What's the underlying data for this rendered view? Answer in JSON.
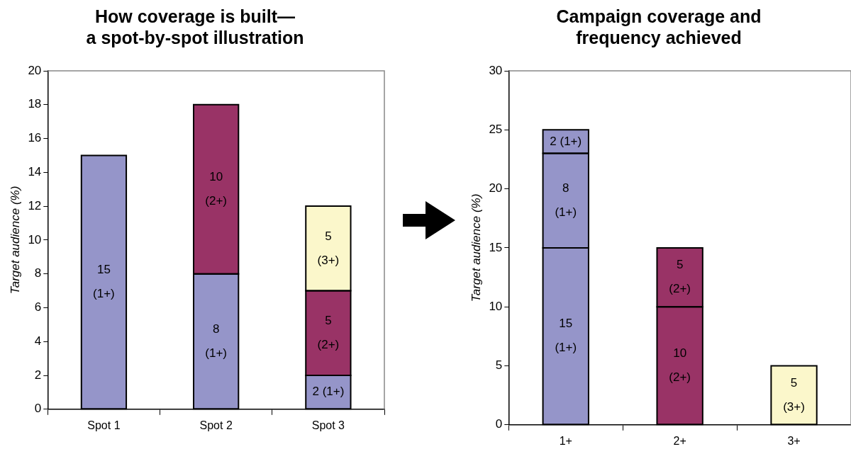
{
  "chart_data": [
    {
      "type": "bar",
      "title": "How coverage is built—\na spot-by-spot illustration",
      "ylabel": "Target audience (%)",
      "categories": [
        "Spot 1",
        "Spot 2",
        "Spot 3"
      ],
      "stacked": true,
      "ylim": [
        0,
        20
      ],
      "yticks": [
        0,
        2,
        4,
        6,
        8,
        10,
        12,
        14,
        16,
        18,
        20
      ],
      "series": [
        {
          "values": [
            15,
            8,
            2
          ],
          "colors": [
            "#9595c9",
            "#9595c9",
            "#9595c9"
          ],
          "value_labels": [
            "15\n(1+)",
            "8\n(1+)",
            "2 (1+)"
          ]
        },
        {
          "values": [
            null,
            10,
            5
          ],
          "colors": [
            "#993366",
            "#993366",
            "#993366"
          ],
          "value_labels": [
            null,
            "10\n(2+)",
            "5\n(2+)"
          ]
        },
        {
          "values": [
            null,
            null,
            5
          ],
          "colors": [
            "#fbf7cb",
            "#fbf7cb",
            "#fbf7cb"
          ],
          "value_labels": [
            null,
            null,
            "5\n(3+)"
          ]
        }
      ]
    },
    {
      "type": "bar",
      "title": "Campaign coverage and\nfrequency achieved",
      "ylabel": "Target audience (%)",
      "categories": [
        "1+",
        "2+",
        "3+"
      ],
      "stacked": true,
      "ylim": [
        0,
        30
      ],
      "yticks": [
        0,
        5,
        10,
        15,
        20,
        25,
        30
      ],
      "series": [
        {
          "values": [
            15,
            10,
            5
          ],
          "colors": [
            "#9595c9",
            "#993366",
            "#fbf7cb"
          ],
          "value_labels": [
            "15\n(1+)",
            "10\n(2+)",
            "5\n(3+)"
          ]
        },
        {
          "values": [
            8,
            5,
            null
          ],
          "colors": [
            "#9595c9",
            "#993366",
            "#993366"
          ],
          "value_labels": [
            "8\n(1+)",
            "5\n(2+)",
            null
          ]
        },
        {
          "values": [
            2,
            null,
            null
          ],
          "colors": [
            "#9595c9",
            "#9595c9",
            "#9595c9"
          ],
          "value_labels": [
            "2 (1+)",
            null,
            null
          ]
        }
      ]
    }
  ]
}
